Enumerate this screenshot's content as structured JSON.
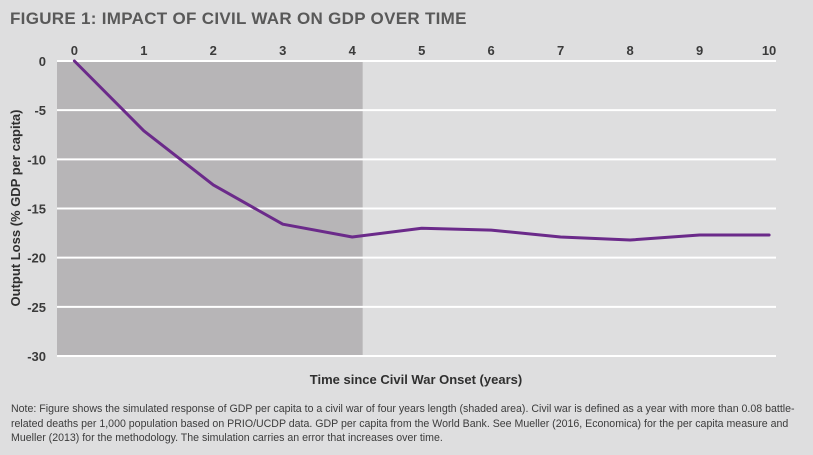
{
  "figure_title": "FIGURE 1: IMPACT OF CIVIL WAR ON GDP OVER TIME",
  "note": "Note: Figure shows the simulated response of GDP per capita to a civil war of four years length (shaded area). Civil war is defined as a year with more than 0.08 battle-related deaths per 1,000 population based on PRIO/UCDP data. GDP per capita from the World Bank. See Mueller (2016, Economica) for the per capita measure and Mueller (2013) for the methodology. The simulation carries an error that increases over time.",
  "colors": {
    "background": "#dededf",
    "shade": "#b7b5b7",
    "line": "#6b2a8a",
    "grid": "#ffffff"
  },
  "chart_data": {
    "type": "line",
    "title": "FIGURE 1: IMPACT OF CIVIL WAR ON GDP OVER TIME",
    "xlabel": "Time since Civil War Onset (years)",
    "ylabel": "Output Loss (% GDP per capita)",
    "x_ticks": [
      "0",
      "1",
      "2",
      "3",
      "4",
      "5",
      "6",
      "7",
      "8",
      "9",
      "10"
    ],
    "y_ticks": [
      "0",
      "-5",
      "-10",
      "-15",
      "-20",
      "-25",
      "-30"
    ],
    "xlim": [
      -0.25,
      10.1
    ],
    "ylim": [
      -30,
      0
    ],
    "shaded_region": {
      "x_start": -0.25,
      "x_end": 4.15,
      "label": "civil war (four years)"
    },
    "series": [
      {
        "name": "Simulated GDP per capita response",
        "x": [
          0,
          1,
          2,
          3,
          4,
          5,
          6,
          7,
          8,
          9,
          10
        ],
        "y": [
          0,
          -7.1,
          -12.6,
          -16.6,
          -17.9,
          -17.0,
          -17.2,
          -17.9,
          -18.2,
          -17.7,
          -17.7
        ]
      }
    ]
  }
}
